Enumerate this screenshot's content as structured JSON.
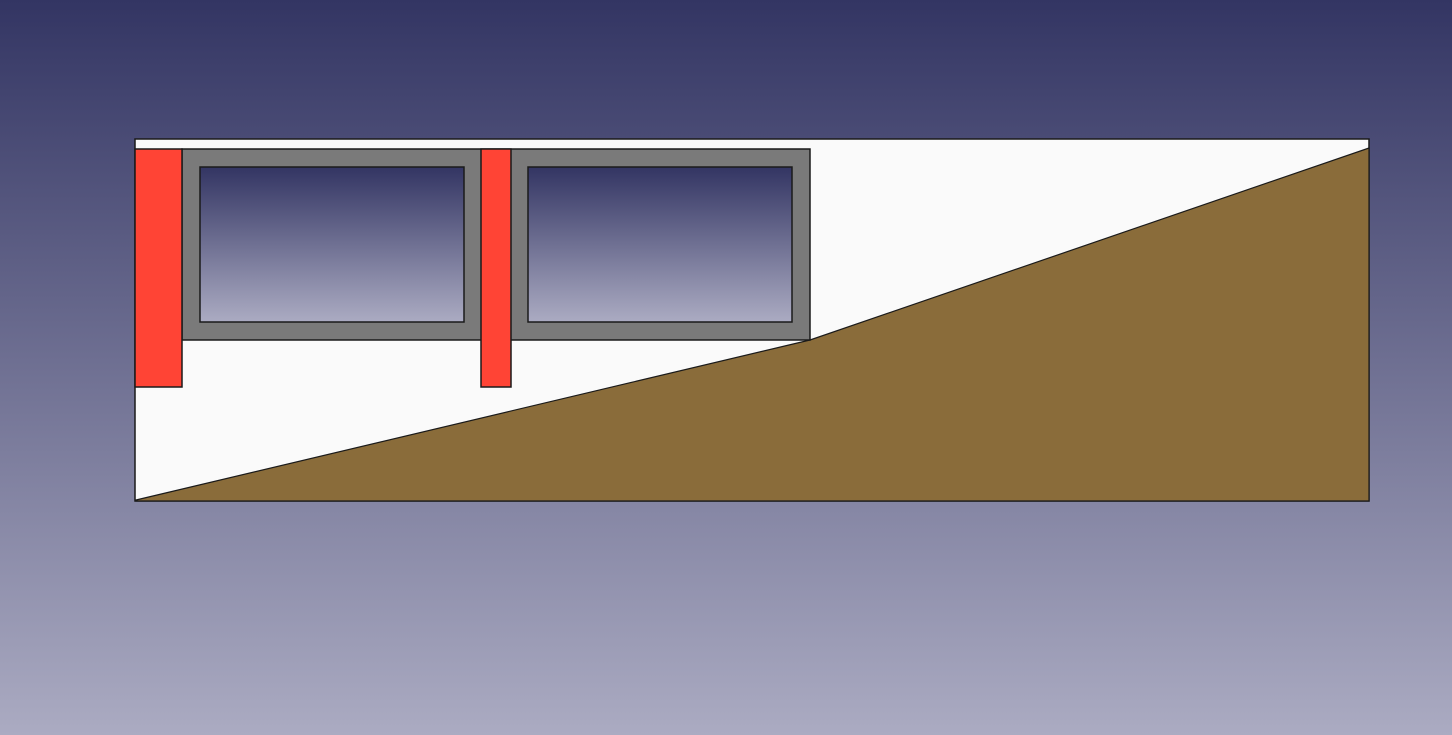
{
  "viewport": {
    "background_top": "#333563",
    "background_bottom": "#ABABC2"
  },
  "colors": {
    "section_box_fill": "#FAFAFA",
    "terrain_fill": "#8A6C3A",
    "culvert_wall_fill": "#7A7A7A",
    "cell_void_fill": "transparent",
    "pile_fill": "#FF4435",
    "outline": "#1A1A1A"
  },
  "parts": [
    {
      "id": "section-box",
      "kind": "section boundary"
    },
    {
      "id": "terrain",
      "kind": "ground slope"
    },
    {
      "id": "culvert",
      "kind": "two-cell box structure",
      "cells": 2
    },
    {
      "id": "pile-left",
      "kind": "support pile"
    },
    {
      "id": "pile-middle",
      "kind": "support pile"
    }
  ]
}
